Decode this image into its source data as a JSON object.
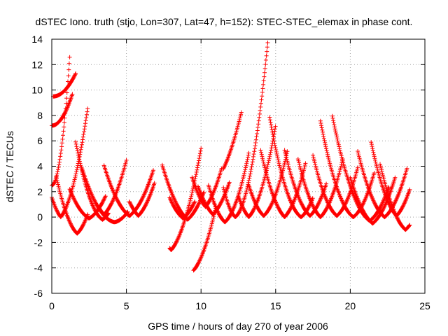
{
  "chart_data": {
    "type": "scatter",
    "title": "dSTEC Iono. truth (stjo, Lon=307, Lat=47, h=152): STEC-STEC_elemax in phase cont.",
    "xlabel": "GPS time / hours of day 270 of year 2006",
    "ylabel": "dSTEC  / TECUs",
    "xlim": [
      0,
      25
    ],
    "ylim": [
      -6,
      14
    ],
    "x_ticks": [
      0,
      5,
      10,
      15,
      20,
      25
    ],
    "y_ticks": [
      -6,
      -4,
      -2,
      0,
      2,
      4,
      6,
      8,
      10,
      12,
      14
    ],
    "grid": true,
    "legend": "none",
    "marker": "plus",
    "color": "#ff0000",
    "arcs": [
      {
        "start": 0.0,
        "end": 1.2,
        "min_t": 0.0,
        "min_v": 2.5,
        "a": 7.0,
        "b": 0.0
      },
      {
        "start": 0.0,
        "end": 1.4,
        "min_t": 0.0,
        "min_v": 7.2,
        "a": 1.3,
        "b": 0.0
      },
      {
        "start": 0.1,
        "end": 1.6,
        "min_t": 0.1,
        "min_v": 9.5,
        "a": 0.8,
        "b": 0.0
      },
      {
        "start": 0.0,
        "end": 2.4,
        "min_t": 0.6,
        "min_v": 0.0,
        "a": 1.8,
        "b": 1.5
      },
      {
        "start": 0.3,
        "end": 2.4,
        "min_t": 1.7,
        "min_v": -1.3,
        "a": 1.5,
        "b": 1.1
      },
      {
        "start": 1.2,
        "end": 3.6,
        "min_t": 2.5,
        "min_v": -0.1,
        "a": 0.9,
        "b": 0.6
      },
      {
        "start": 1.6,
        "end": 3.8,
        "min_t": 3.4,
        "min_v": -0.2,
        "a": 1.5,
        "b": 0.7
      },
      {
        "start": 2.0,
        "end": 5.1,
        "min_t": 4.2,
        "min_v": -0.4,
        "a": 0.8,
        "b": 0.2
      },
      {
        "start": 3.2,
        "end": 5.0,
        "min_t": 3.5,
        "min_v": 0.2,
        "a": 1.1,
        "b": 1.2
      },
      {
        "start": 3.5,
        "end": 6.8,
        "min_t": 5.2,
        "min_v": 0.1,
        "a": 0.9,
        "b": 0.8
      },
      {
        "start": 5.2,
        "end": 6.9,
        "min_t": 5.8,
        "min_v": 0.1,
        "a": 1.1,
        "b": 1.2
      },
      {
        "start": 7.9,
        "end": 9.6,
        "min_t": 8.8,
        "min_v": -0.1,
        "a": 1.0,
        "b": 0.9
      },
      {
        "start": 7.9,
        "end": 10.0,
        "min_t": 8.0,
        "min_v": -2.6,
        "a": 1.3,
        "b": 1.4
      },
      {
        "start": 7.4,
        "end": 10.2,
        "min_t": 9.1,
        "min_v": -0.2,
        "a": 0.9,
        "b": 1.0
      },
      {
        "start": 9.5,
        "end": 11.0,
        "min_t": 9.5,
        "min_v": -4.2,
        "a": 1.3,
        "b": 1.4
      },
      {
        "start": 9.4,
        "end": 11.4,
        "min_t": 10.3,
        "min_v": 0.8,
        "a": 1.2,
        "b": 1.5
      },
      {
        "start": 9.8,
        "end": 11.9,
        "min_t": 10.8,
        "min_v": 0.2,
        "a": 1.0,
        "b": 1.2
      },
      {
        "start": 10.5,
        "end": 13.2,
        "min_t": 11.6,
        "min_v": -0.4,
        "a": 1.5,
        "b": 1.0
      },
      {
        "start": 11.5,
        "end": 12.7,
        "min_t": 11.5,
        "min_v": 3.8,
        "a": 1.0,
        "b": 2.5
      },
      {
        "start": 11.5,
        "end": 14.5,
        "min_t": 12.3,
        "min_v": 0.0,
        "a": 2.5,
        "b": 0.9
      },
      {
        "start": 12.5,
        "end": 15.0,
        "min_t": 13.2,
        "min_v": 0.0,
        "a": 1.5,
        "b": 1.3
      },
      {
        "start": 13.2,
        "end": 15.8,
        "min_t": 14.2,
        "min_v": 0.1,
        "a": 1.4,
        "b": 1.0
      },
      {
        "start": 14.0,
        "end": 17.0,
        "min_t": 15.6,
        "min_v": 0.0,
        "a": 1.3,
        "b": 1.2
      },
      {
        "start": 14.6,
        "end": 17.5,
        "min_t": 16.7,
        "min_v": 0.0,
        "a": 1.4,
        "b": 0.8
      },
      {
        "start": 15.6,
        "end": 18.4,
        "min_t": 17.3,
        "min_v": 0.1,
        "a": 1.2,
        "b": 1.0
      },
      {
        "start": 16.5,
        "end": 19.5,
        "min_t": 18.0,
        "min_v": 0.0,
        "a": 1.3,
        "b": 1.1
      },
      {
        "start": 17.5,
        "end": 20.5,
        "min_t": 19.1,
        "min_v": 0.1,
        "a": 1.3,
        "b": 0.9
      },
      {
        "start": 18.0,
        "end": 21.6,
        "min_t": 20.2,
        "min_v": 0.0,
        "a": 1.2,
        "b": 0.8
      },
      {
        "start": 18.8,
        "end": 22.6,
        "min_t": 21.3,
        "min_v": -0.3,
        "a": 1.0,
        "b": 0.8
      },
      {
        "start": 20.0,
        "end": 23.0,
        "min_t": 21.5,
        "min_v": -0.5,
        "a": 1.0,
        "b": 0.9
      },
      {
        "start": 20.5,
        "end": 23.8,
        "min_t": 22.3,
        "min_v": 0.0,
        "a": 1.1,
        "b": 0.9
      },
      {
        "start": 21.4,
        "end": 24.0,
        "min_t": 23.1,
        "min_v": 0.1,
        "a": 1.3,
        "b": 1.2
      },
      {
        "start": 22.0,
        "end": 24.0,
        "min_t": 23.7,
        "min_v": -1.0,
        "a": 1.2,
        "b": 1.0
      }
    ]
  }
}
